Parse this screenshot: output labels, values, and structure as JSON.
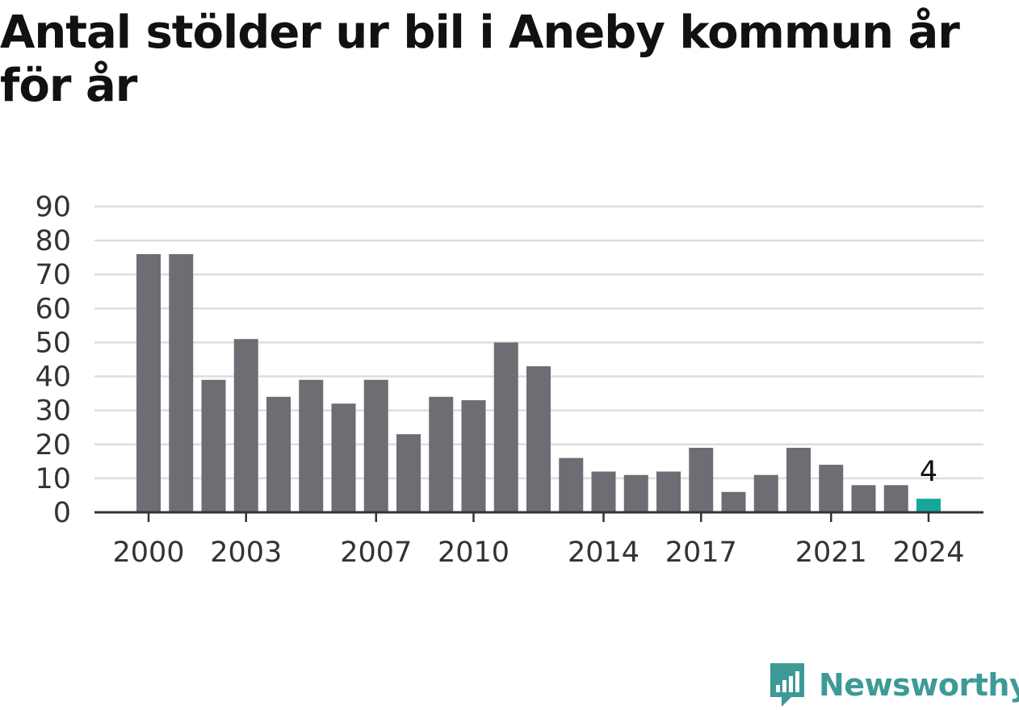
{
  "title": "Antal stölder ur bil i Aneby kommun år för år",
  "brand": {
    "name": "Newsworthy",
    "color": "#3d9a96",
    "icon": "bar-chart-speech-bubble-icon"
  },
  "colors": {
    "bar": "#6e6d73",
    "highlight": "#14a89c",
    "grid": "#dddddd",
    "axis": "#333333"
  },
  "chart_data": {
    "type": "bar",
    "title": "Antal stölder ur bil i Aneby kommun år för år",
    "xlabel": "",
    "ylabel": "",
    "categories": [
      "2000",
      "2001",
      "2002",
      "2003",
      "2004",
      "2005",
      "2006",
      "2007",
      "2008",
      "2009",
      "2010",
      "2011",
      "2012",
      "2013",
      "2014",
      "2015",
      "2016",
      "2017",
      "2018",
      "2019",
      "2020",
      "2021",
      "2022",
      "2023",
      "2024"
    ],
    "values": [
      76,
      76,
      39,
      51,
      34,
      39,
      32,
      39,
      23,
      34,
      33,
      50,
      43,
      16,
      12,
      11,
      12,
      19,
      6,
      11,
      19,
      14,
      8,
      8,
      4
    ],
    "x_tick_labels": [
      "2000",
      "2003",
      "2007",
      "2010",
      "2014",
      "2017",
      "2021",
      "2024"
    ],
    "y_ticks": [
      0,
      10,
      20,
      30,
      40,
      50,
      60,
      70,
      80,
      90
    ],
    "ylim": [
      0,
      90
    ],
    "grid": true,
    "highlight": {
      "category": "2024",
      "label": "4"
    }
  }
}
